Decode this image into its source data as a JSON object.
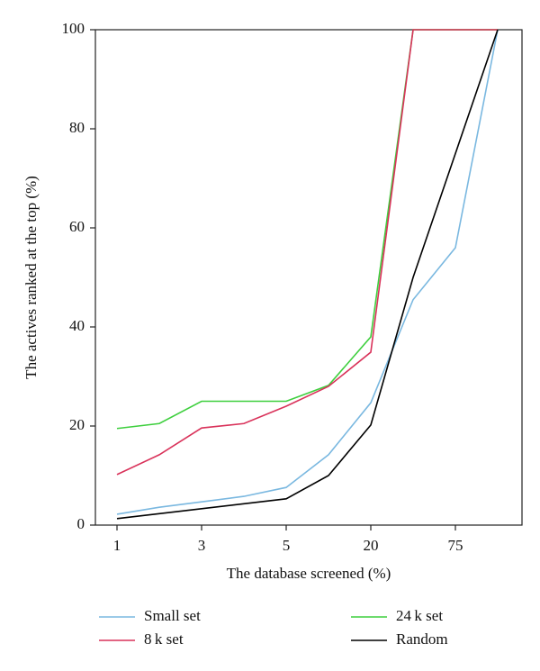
{
  "chart_data": {
    "type": "line",
    "xlabel": "The database screened (%)",
    "ylabel": "The actives ranked at the top (%)",
    "categories": [
      "1",
      null,
      "3",
      null,
      "5",
      null,
      "20",
      null,
      "75",
      null
    ],
    "ylim": [
      0,
      100
    ],
    "yticks": [
      0,
      20,
      40,
      60,
      80,
      100
    ],
    "legend": "bottom",
    "series": [
      {
        "name": "Small set",
        "color": "#7ab8e0",
        "values": [
          2.2,
          3.6,
          4.7,
          5.8,
          7.6,
          14.2,
          24.7,
          45.5,
          56,
          100
        ]
      },
      {
        "name": "24 k set",
        "color": "#3ecf3e",
        "values": [
          19.5,
          20.5,
          25,
          25,
          25,
          28.2,
          38,
          100,
          100,
          100
        ]
      },
      {
        "name": "8 k set",
        "color": "#d9325a",
        "values": [
          10.2,
          14.2,
          19.6,
          20.5,
          24,
          28,
          34.9,
          100,
          100,
          100
        ]
      },
      {
        "name": "Random",
        "color": "#000000",
        "values": [
          1.3,
          2.3,
          3.3,
          4.3,
          5.3,
          10,
          20.2,
          50,
          75,
          100
        ]
      }
    ]
  }
}
